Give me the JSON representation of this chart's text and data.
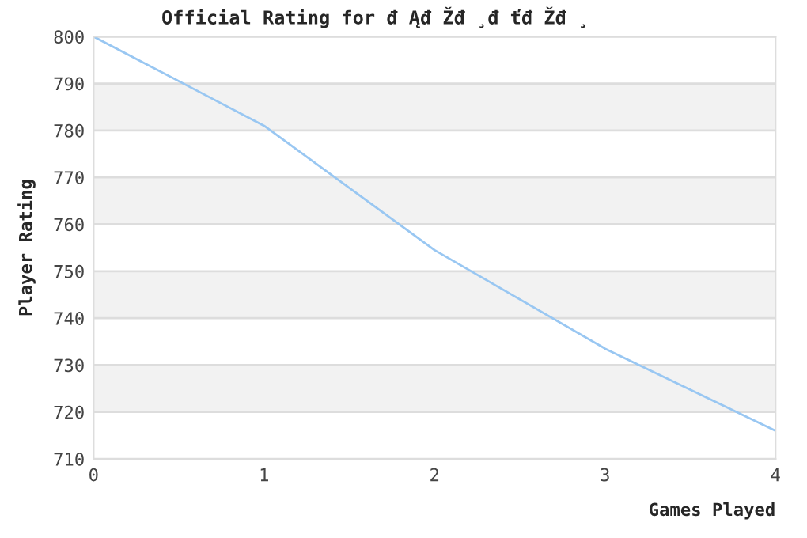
{
  "chart_data": {
    "type": "line",
    "title": "Official Rating for đ Ąđ Žđ ¸đ ťđ Žđ ¸",
    "xlabel": "Games Played",
    "ylabel": "Player Rating",
    "x": [
      0,
      1,
      2,
      3,
      4
    ],
    "series": [
      {
        "color": "#99c7f2",
        "values": [
          800,
          781,
          754.5,
          733.5,
          716
        ]
      }
    ],
    "xlim": [
      0,
      4
    ],
    "xticks": [
      0,
      1,
      2,
      3,
      4
    ],
    "ylim": [
      710,
      800
    ],
    "yticks": [
      710,
      720,
      730,
      740,
      750,
      760,
      770,
      780,
      790,
      800
    ],
    "grid": "y",
    "legend": false,
    "marker": "none",
    "line_style": "solid"
  }
}
